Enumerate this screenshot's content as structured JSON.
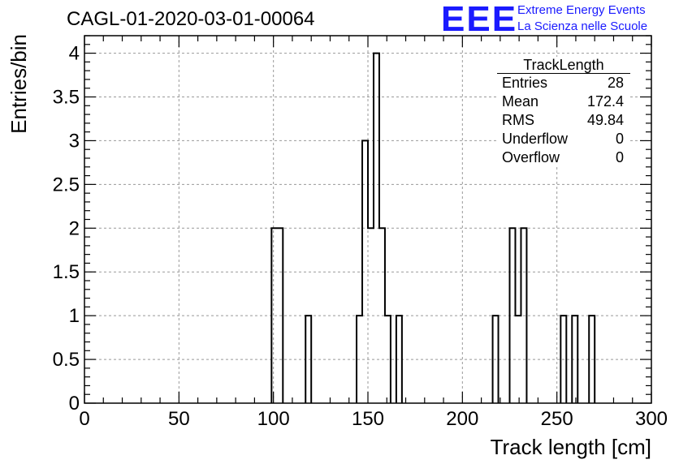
{
  "header": {
    "run_title": "CAGL-01-2020-03-01-00064",
    "logo_text": "EEE",
    "logo_line1": "Extreme Energy Events",
    "logo_line2": "La Scienza nelle Scuole"
  },
  "stats_box": {
    "title": "TrackLength",
    "rows": [
      {
        "label": "Entries",
        "value": "28"
      },
      {
        "label": "Mean",
        "value": "172.4"
      },
      {
        "label": "RMS",
        "value": "49.84"
      },
      {
        "label": "Underflow",
        "value": "0"
      },
      {
        "label": "Overflow",
        "value": "0"
      }
    ]
  },
  "colors": {
    "logo": "#1a1aff",
    "line": "#000000",
    "grid": "#999999"
  },
  "chart_data": {
    "type": "bar",
    "histogram": true,
    "title": "CAGL-01-2020-03-01-00064",
    "xlabel": "Track length [cm]",
    "ylabel": "Entries/bin",
    "xlim": [
      0,
      300
    ],
    "ylim": [
      0,
      4.2
    ],
    "grid": true,
    "legend": "top-right",
    "bin_width": 3,
    "x_ticks": [
      0,
      50,
      100,
      150,
      200,
      250,
      300
    ],
    "x_tick_labels": [
      "0",
      "50",
      "100",
      "150",
      "200",
      "250",
      "300"
    ],
    "y_ticks": [
      0,
      0.5,
      1,
      1.5,
      2,
      2.5,
      3,
      3.5,
      4
    ],
    "y_tick_labels": [
      "0",
      "0.5",
      "1",
      "1.5",
      "2",
      "2.5",
      "3",
      "3.5",
      "4"
    ],
    "bins": [
      {
        "x": 99,
        "value": 2
      },
      {
        "x": 102,
        "value": 2
      },
      {
        "x": 117,
        "value": 1
      },
      {
        "x": 144,
        "value": 1
      },
      {
        "x": 147,
        "value": 3
      },
      {
        "x": 150,
        "value": 2
      },
      {
        "x": 153,
        "value": 4
      },
      {
        "x": 156,
        "value": 2
      },
      {
        "x": 159,
        "value": 1
      },
      {
        "x": 165,
        "value": 1
      },
      {
        "x": 216,
        "value": 1
      },
      {
        "x": 225,
        "value": 2
      },
      {
        "x": 228,
        "value": 1
      },
      {
        "x": 231,
        "value": 2
      },
      {
        "x": 252,
        "value": 1
      },
      {
        "x": 258,
        "value": 1
      },
      {
        "x": 267,
        "value": 1
      }
    ]
  }
}
